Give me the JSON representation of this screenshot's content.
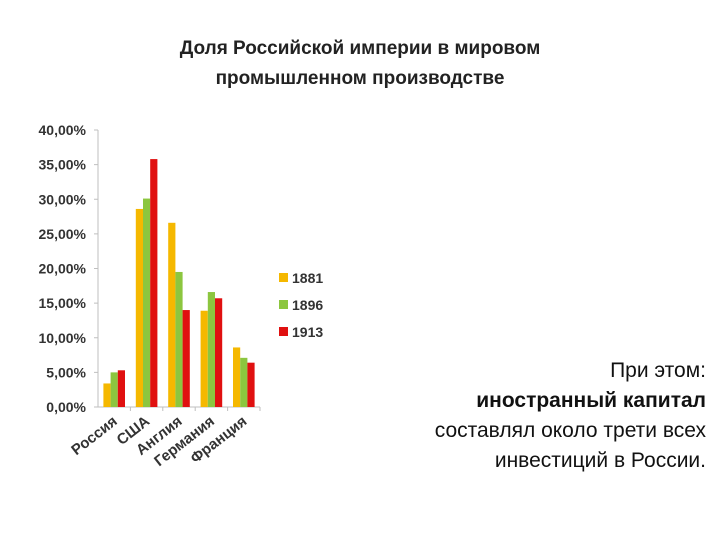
{
  "title": {
    "line1": "Доля Российской империи в мировом",
    "line2": "промышленном производстве"
  },
  "chart_data": {
    "type": "bar",
    "categories": [
      "Россия",
      "США",
      "Англия",
      "Германия",
      "Франция"
    ],
    "series": [
      {
        "name": "1881",
        "color": "#f5b800",
        "values": [
          3.4,
          28.6,
          26.6,
          13.9,
          8.6
        ]
      },
      {
        "name": "1896",
        "color": "#8cc63f",
        "values": [
          5.0,
          30.1,
          19.5,
          16.6,
          7.1
        ]
      },
      {
        "name": "1913",
        "color": "#e01010",
        "values": [
          5.3,
          35.8,
          14.0,
          15.7,
          6.4
        ]
      }
    ],
    "yticks": [
      "40,00%",
      "35,00%",
      "30,00%",
      "25,00%",
      "20,00%",
      "15,00%",
      "10,00%",
      "5,00%",
      "0,00%"
    ],
    "ylim": [
      0,
      40
    ],
    "grid": false,
    "legend": "right"
  },
  "note": {
    "line1": "При этом:",
    "line2": "иностранный капитал",
    "line3": "составлял около трети всех",
    "line4": "инвестиций в России."
  }
}
